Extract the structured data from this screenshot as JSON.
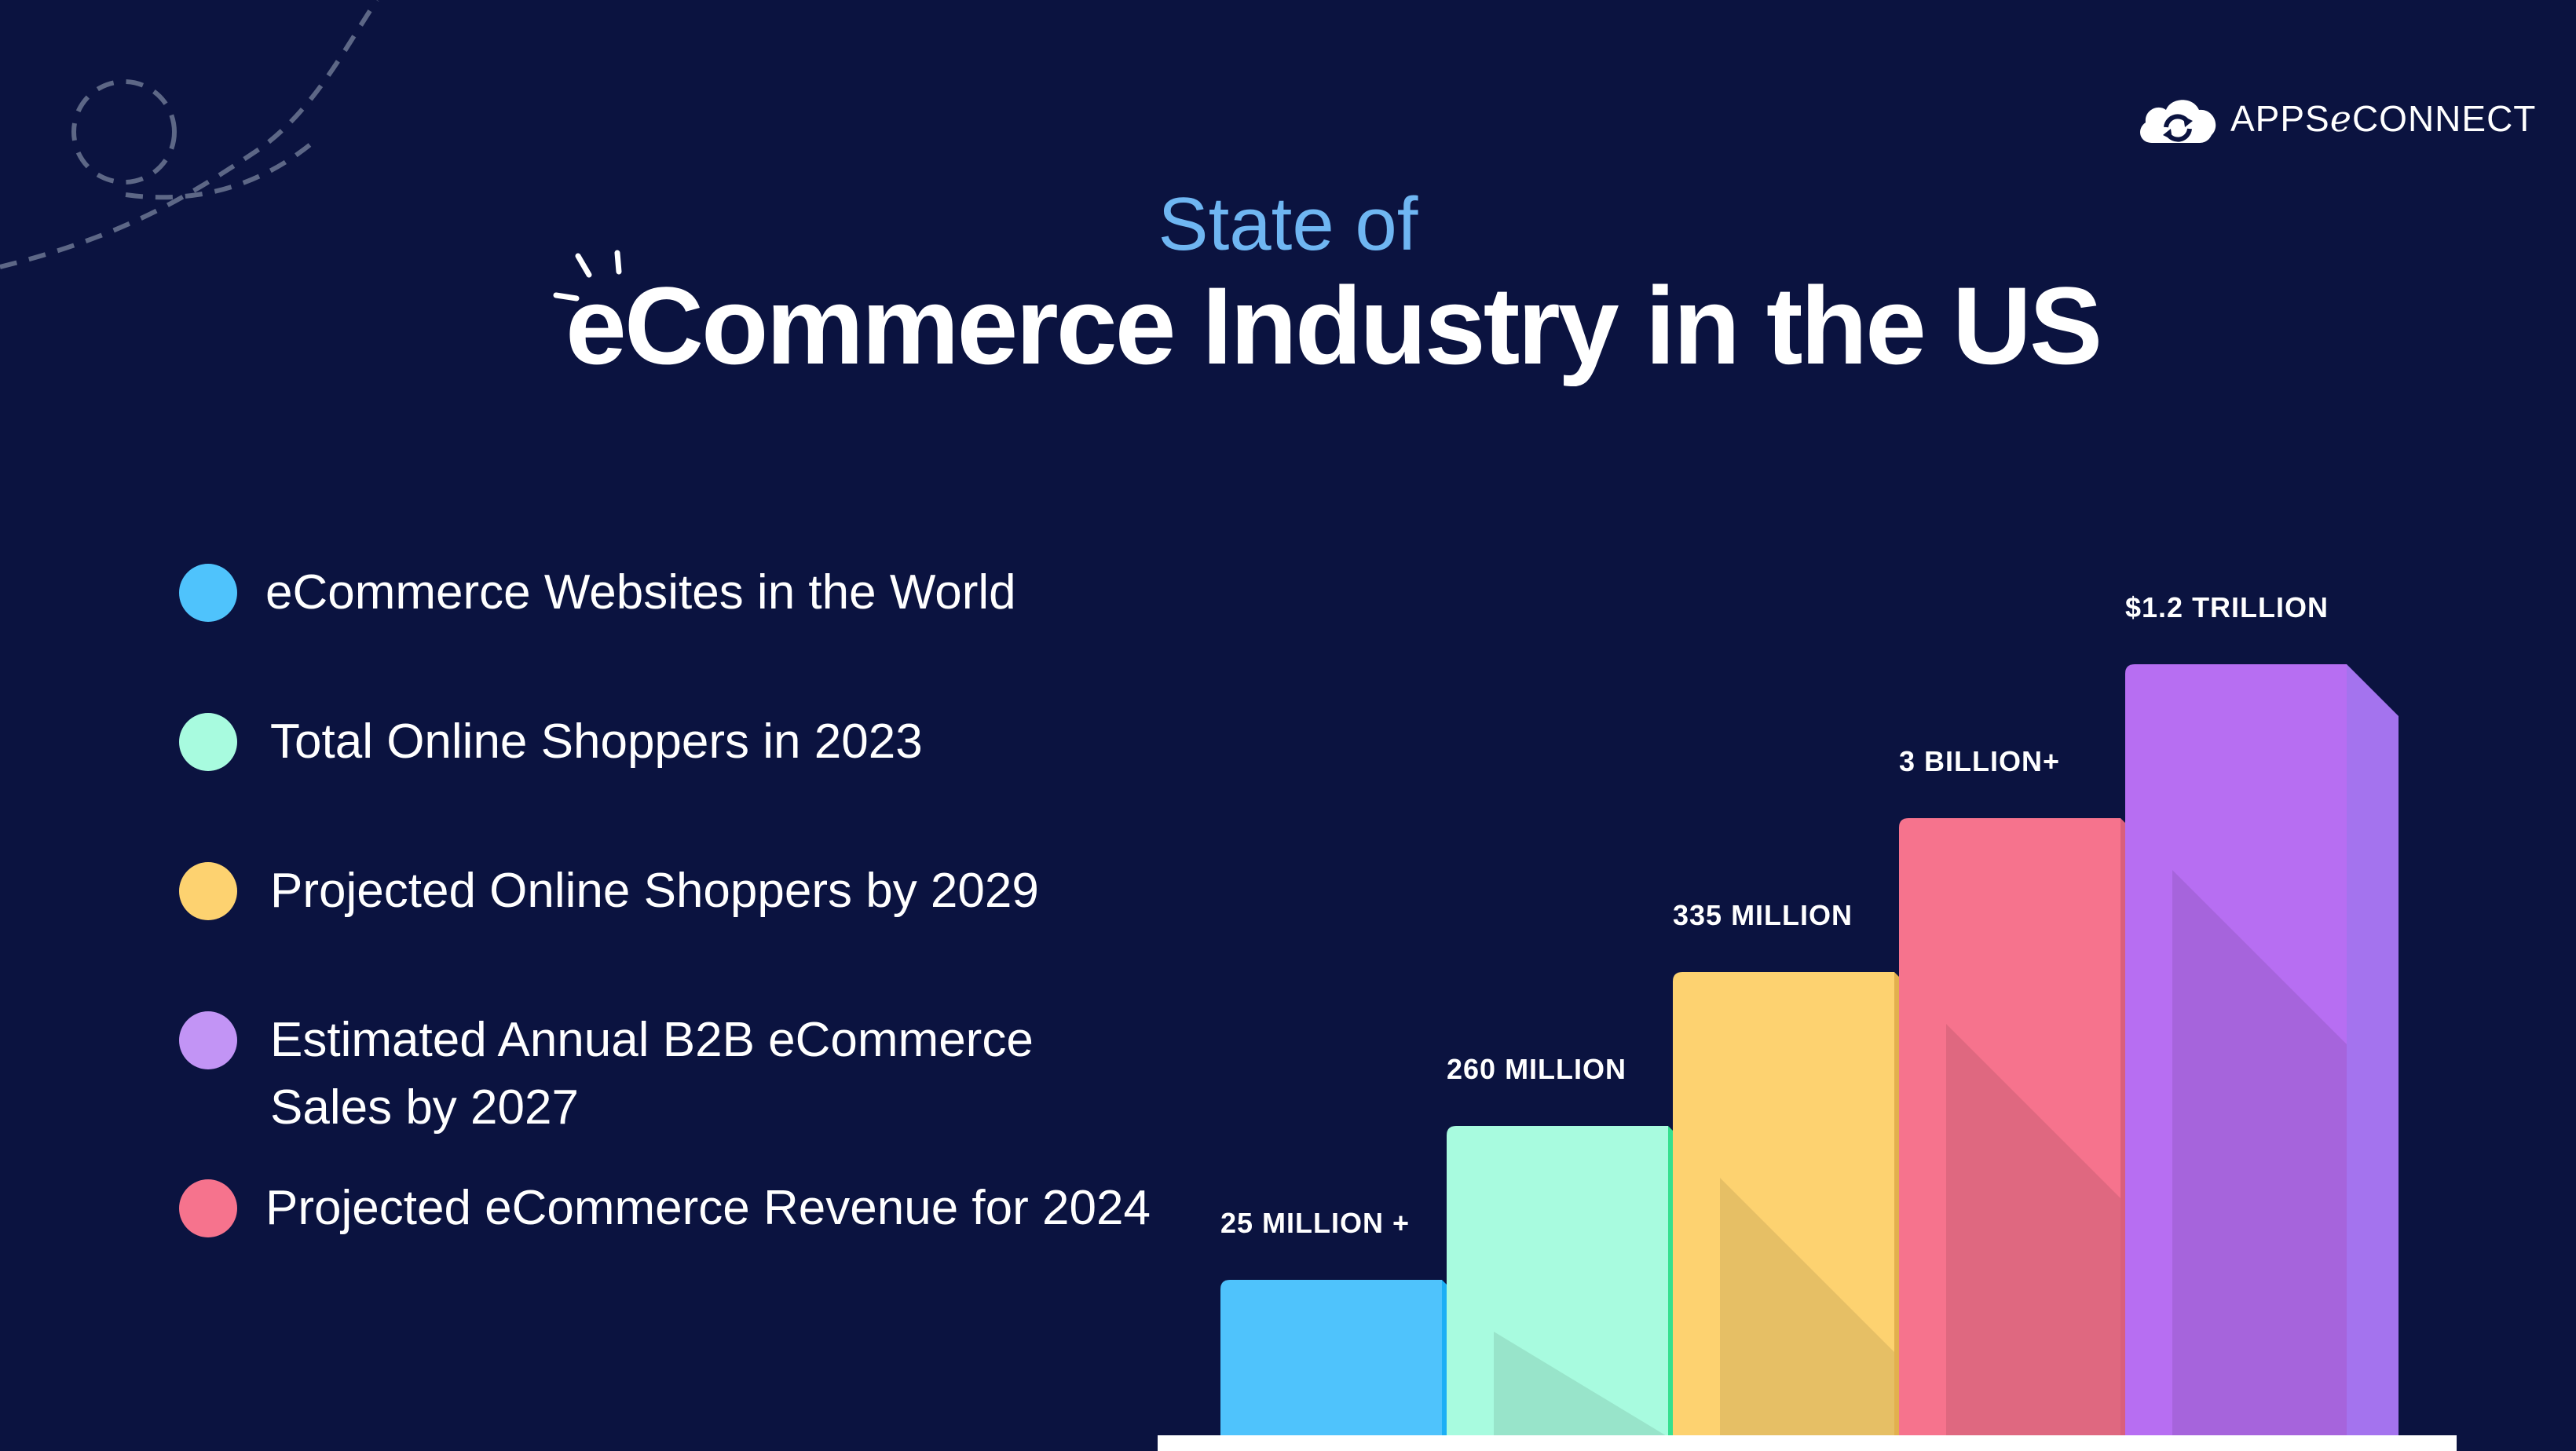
{
  "brand": {
    "name": "APPSℯCONNECT"
  },
  "title": {
    "top": "State of",
    "main": "eCommerce Industry in the US"
  },
  "colors": {
    "background": "#0b1340",
    "blue": "#4fc3fc",
    "mint": "#a8fbdf",
    "yellow": "#fdd270",
    "pink": "#f6738d",
    "purple": "#b76ef2"
  },
  "legend": [
    {
      "label": "eCommerce Websites in the World",
      "color": "#4fc3fc"
    },
    {
      "label": "Total Online Shoppers in 2023",
      "color": "#a8fbdf"
    },
    {
      "label": "Projected Online Shoppers by 2029",
      "color": "#fdd270"
    },
    {
      "label": "Estimated Annual B2B eCommerce\nSales by 2027",
      "color": "#c294f5"
    },
    {
      "label": "Projected eCommerce Revenue for 2024",
      "color": "#f6738d"
    }
  ],
  "chart_data": {
    "type": "bar",
    "categories": [
      "eCommerce Websites in the World",
      "Total Online Shoppers in 2023",
      "Projected Online Shoppers by 2029",
      "Projected eCommerce Revenue for 2024",
      "Estimated Annual B2B eCommerce Sales by 2027"
    ],
    "values": [
      1,
      2,
      3,
      4,
      5
    ],
    "data_labels": [
      "25 MILLION +",
      "260 MILLION",
      "335 MILLION",
      "3 BILLION+",
      "$1.2 TRILLION"
    ],
    "colors": [
      {
        "front": "#4fc3fc",
        "side": "#1caff5"
      },
      {
        "front": "#a8fbdf",
        "side": "#35e08f"
      },
      {
        "front": "#fdd270",
        "side": "#e2b04e"
      },
      {
        "front": "#f6738d",
        "side": "#d95f7c"
      },
      {
        "front": "#b76ef2",
        "side": "#a473ee"
      }
    ],
    "style": "stepped 3D bars",
    "axes": "none",
    "grid": false
  }
}
